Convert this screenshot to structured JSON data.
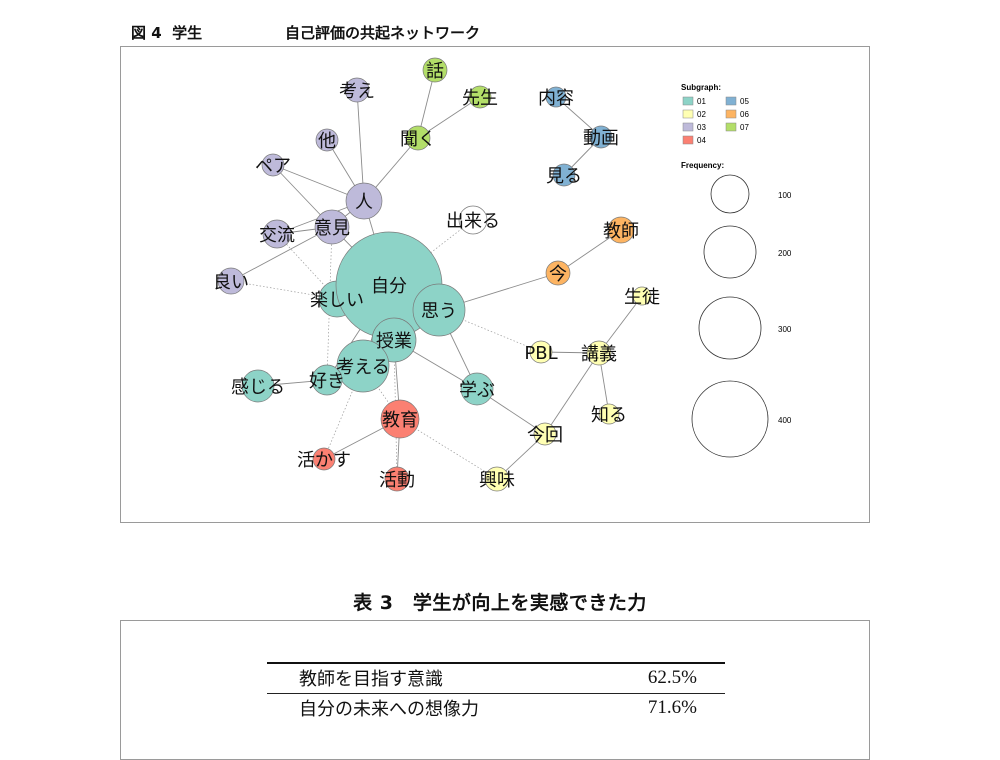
{
  "figure": {
    "number": "図 4",
    "subject": "学生",
    "title": "自己評価の共起ネットワーク",
    "legend": {
      "subgraph_title": "Subgraph:",
      "subgraph_items": [
        {
          "label": "01",
          "color": "#8dd3c7"
        },
        {
          "label": "02",
          "color": "#ffffb3"
        },
        {
          "label": "03",
          "color": "#bebada"
        },
        {
          "label": "04",
          "color": "#fb8072"
        },
        {
          "label": "05",
          "color": "#80b1d3"
        },
        {
          "label": "06",
          "color": "#fdb462"
        },
        {
          "label": "07",
          "color": "#b3de69"
        }
      ],
      "frequency_title": "Frequency:",
      "frequency_items": [
        "100",
        "200",
        "300",
        "400"
      ]
    },
    "network": {
      "nodes": [
        {
          "id": "tanoshii",
          "label": "楽しい",
          "group": "01"
        },
        {
          "id": "jibun",
          "label": "自分",
          "group": "01"
        },
        {
          "id": "omou",
          "label": "思う",
          "group": "01"
        },
        {
          "id": "jugyou",
          "label": "授業",
          "group": "01"
        },
        {
          "id": "kangaeru",
          "label": "考える",
          "group": "01"
        },
        {
          "id": "suki",
          "label": "好き",
          "group": "01"
        },
        {
          "id": "kanjiru",
          "label": "感じる",
          "group": "01"
        },
        {
          "id": "manabu",
          "label": "学ぶ",
          "group": "01"
        },
        {
          "id": "pbl",
          "label": "PBL",
          "group": "02"
        },
        {
          "id": "kougi",
          "label": "講義",
          "group": "02"
        },
        {
          "id": "seito",
          "label": "生徒",
          "group": "02"
        },
        {
          "id": "shiru",
          "label": "知る",
          "group": "02"
        },
        {
          "id": "konkai",
          "label": "今回",
          "group": "02"
        },
        {
          "id": "kyoumi",
          "label": "興味",
          "group": "02"
        },
        {
          "id": "hito",
          "label": "人",
          "group": "03"
        },
        {
          "id": "iken",
          "label": "意見",
          "group": "03"
        },
        {
          "id": "koryu",
          "label": "交流",
          "group": "03"
        },
        {
          "id": "yoi",
          "label": "良い",
          "group": "03"
        },
        {
          "id": "pea",
          "label": "ペア",
          "group": "03"
        },
        {
          "id": "hoka",
          "label": "他",
          "group": "03"
        },
        {
          "id": "kangae",
          "label": "考え",
          "group": "03"
        },
        {
          "id": "kyouiku",
          "label": "教育",
          "group": "04"
        },
        {
          "id": "ikasu",
          "label": "活かす",
          "group": "04"
        },
        {
          "id": "katsudou",
          "label": "活動",
          "group": "04"
        },
        {
          "id": "naiyou",
          "label": "内容",
          "group": "05"
        },
        {
          "id": "douga",
          "label": "動画",
          "group": "05"
        },
        {
          "id": "miru",
          "label": "見る",
          "group": "05"
        },
        {
          "id": "ima",
          "label": "今",
          "group": "06"
        },
        {
          "id": "kyoushi",
          "label": "教師",
          "group": "06"
        },
        {
          "id": "hanashi",
          "label": "話",
          "group": "07"
        },
        {
          "id": "sensei",
          "label": "先生",
          "group": "07"
        },
        {
          "id": "kiku",
          "label": "聞く",
          "group": "07"
        },
        {
          "id": "dekiru",
          "label": "出来る",
          "group": ""
        }
      ]
    }
  },
  "table": {
    "caption": "表 3　学生が向上を実感できた力",
    "rows": [
      {
        "label": "教師を目指す意識",
        "value": "62.5%"
      },
      {
        "label": "自分の未来への想像力",
        "value": "71.6%"
      }
    ]
  }
}
